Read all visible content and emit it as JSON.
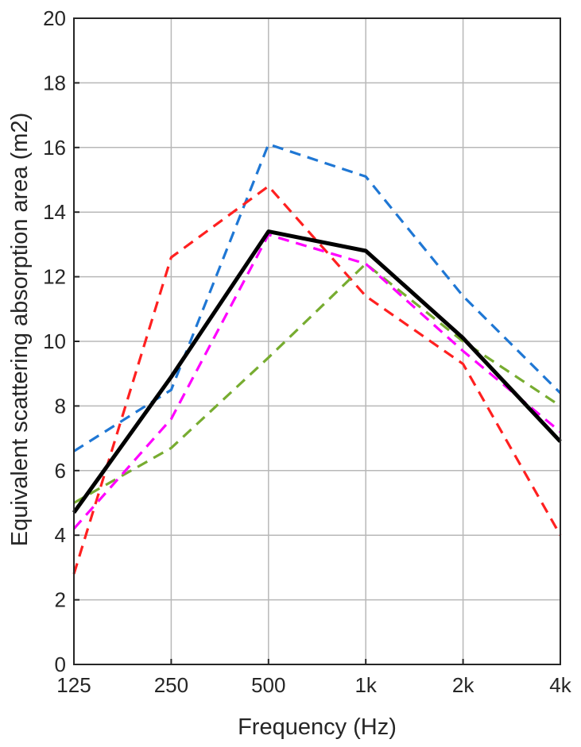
{
  "chart_data": {
    "type": "line",
    "title": "",
    "xlabel": "Frequency (Hz)",
    "ylabel": "Equivalent scattering absorption area (m2)",
    "categories": [
      "125",
      "250",
      "500",
      "1k",
      "2k",
      "4k"
    ],
    "yticks": [
      "0",
      "2",
      "4",
      "6",
      "8",
      "10",
      "12",
      "14",
      "16",
      "18",
      "20"
    ],
    "ylim": [
      0,
      20
    ],
    "grid": true,
    "legend": "none",
    "series": [
      {
        "color": "#1f77d4",
        "dash": "dashed",
        "values": [
          6.6,
          8.5,
          16.1,
          15.1,
          11.4,
          8.4
        ]
      },
      {
        "color": "#ff2020",
        "dash": "dashed",
        "values": [
          2.8,
          12.6,
          14.8,
          11.4,
          9.3,
          4.0
        ]
      },
      {
        "color": "#77ac30",
        "dash": "dashed",
        "values": [
          5.0,
          6.7,
          9.5,
          12.4,
          10.0,
          8.0
        ]
      },
      {
        "color": "#ff00ff",
        "dash": "dashed",
        "values": [
          4.2,
          7.6,
          13.3,
          12.4,
          9.7,
          7.2
        ]
      },
      {
        "color": "#000000",
        "dash": "solid",
        "values": [
          4.7,
          8.9,
          13.4,
          12.8,
          10.1,
          6.9
        ]
      }
    ]
  }
}
